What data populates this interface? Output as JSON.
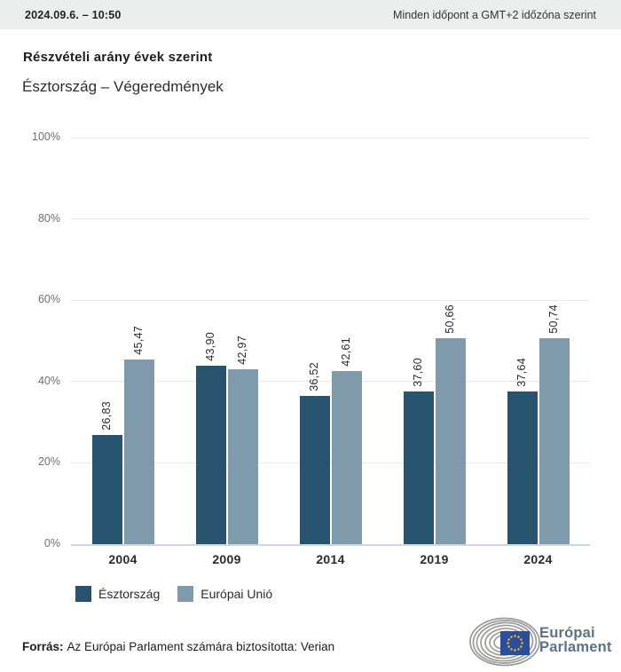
{
  "header": {
    "datetime": "2024.09.6. – 10:50",
    "timezone_note": "Minden időpont a GMT+2 időzóna szerint"
  },
  "title": "Részvételi arány évek szerint",
  "subtitle": "Észtország – Végeredmények",
  "chart_data": {
    "type": "bar",
    "categories": [
      "2004",
      "2009",
      "2014",
      "2019",
      "2024"
    ],
    "series": [
      {
        "name": "Észtország",
        "color": "#27536F",
        "values": [
          26.83,
          43.9,
          36.52,
          37.6,
          37.64
        ],
        "value_labels": [
          "26,83",
          "43,90",
          "36,52",
          "37,60",
          "37,64"
        ]
      },
      {
        "name": "Európai Unió",
        "color": "#7F9AAB",
        "values": [
          45.47,
          42.97,
          42.61,
          50.66,
          50.74
        ],
        "value_labels": [
          "45,47",
          "42,97",
          "42,61",
          "50,66",
          "50,74"
        ]
      }
    ],
    "ylim": [
      0,
      100
    ],
    "ytick_values": [
      0,
      20,
      40,
      60,
      80,
      100
    ],
    "ytick_labels": [
      "0%",
      "20%",
      "40%",
      "60%",
      "80%",
      "100%"
    ],
    "grid": true,
    "legend_position": "bottom",
    "value_label_rotation": -90
  },
  "footer": {
    "source_label": "Forrás:",
    "source_text": "Az Európai Parlament számára biztosította: Verian"
  },
  "logo": {
    "line1": "Európai",
    "line2": "Parlament",
    "arc_color": "#9b9b9a",
    "flag_color": "#2a4da0",
    "star_color": "#ffcc00",
    "text_color": "#5e7285"
  }
}
